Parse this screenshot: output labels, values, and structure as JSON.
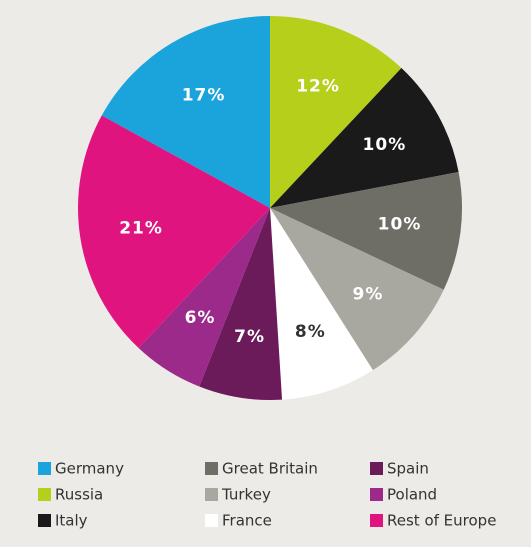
{
  "chart_data": {
    "type": "pie",
    "categories": [
      "Germany",
      "Russia",
      "Italy",
      "Great Britain",
      "Turkey",
      "France",
      "Spain",
      "Poland",
      "Rest of Europe"
    ],
    "values": [
      17,
      12,
      10,
      10,
      9,
      8,
      7,
      6,
      21
    ],
    "value_labels": [
      "17%",
      "12%",
      "10%",
      "10%",
      "9%",
      "8%",
      "7%",
      "6%",
      "21%"
    ],
    "colors": [
      "#1ba3dc",
      "#b5cf1a",
      "#1a1a1a",
      "#6e6e66",
      "#a8a8a0",
      "#ffffff",
      "#6b1a5a",
      "#9b2a8a",
      "#e0147f"
    ]
  }
}
